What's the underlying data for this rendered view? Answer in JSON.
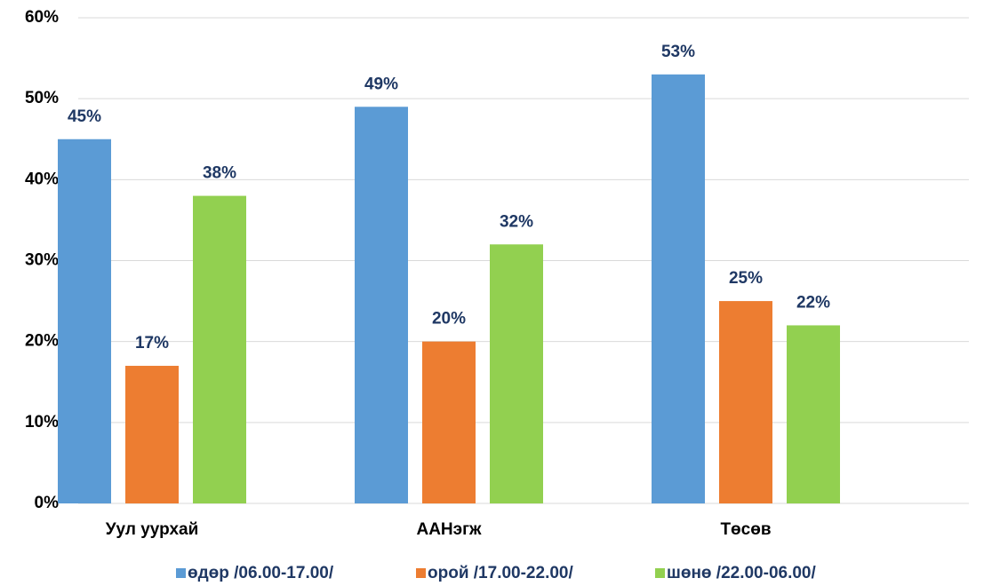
{
  "chart_data": {
    "type": "bar",
    "categories": [
      "Уул уурхай",
      "ААНэгж",
      "Төсөв"
    ],
    "series": [
      {
        "name": "өдөр /06.00-17.00/",
        "color": "#5b9bd5",
        "values": [
          45,
          49,
          53
        ],
        "value_labels": [
          "45%",
          "49%",
          "53%"
        ]
      },
      {
        "name": "орой /17.00-22.00/",
        "color": "#ed7d31",
        "values": [
          17,
          20,
          25
        ],
        "value_labels": [
          "17%",
          "20%",
          "25%"
        ]
      },
      {
        "name": "шөнө /22.00-06.00/",
        "color": "#92d050",
        "values": [
          38,
          32,
          22
        ],
        "value_labels": [
          "38%",
          "32%",
          "22%"
        ]
      }
    ],
    "ylim": [
      0,
      60
    ],
    "yticks": [
      {
        "value": 0,
        "label": "0%"
      },
      {
        "value": 10,
        "label": "10%"
      },
      {
        "value": 20,
        "label": "20%"
      },
      {
        "value": 30,
        "label": "30%"
      },
      {
        "value": 40,
        "label": "40%"
      },
      {
        "value": 50,
        "label": "50%"
      },
      {
        "value": 60,
        "label": "60%"
      }
    ],
    "grid": true,
    "legend": "bottom"
  }
}
